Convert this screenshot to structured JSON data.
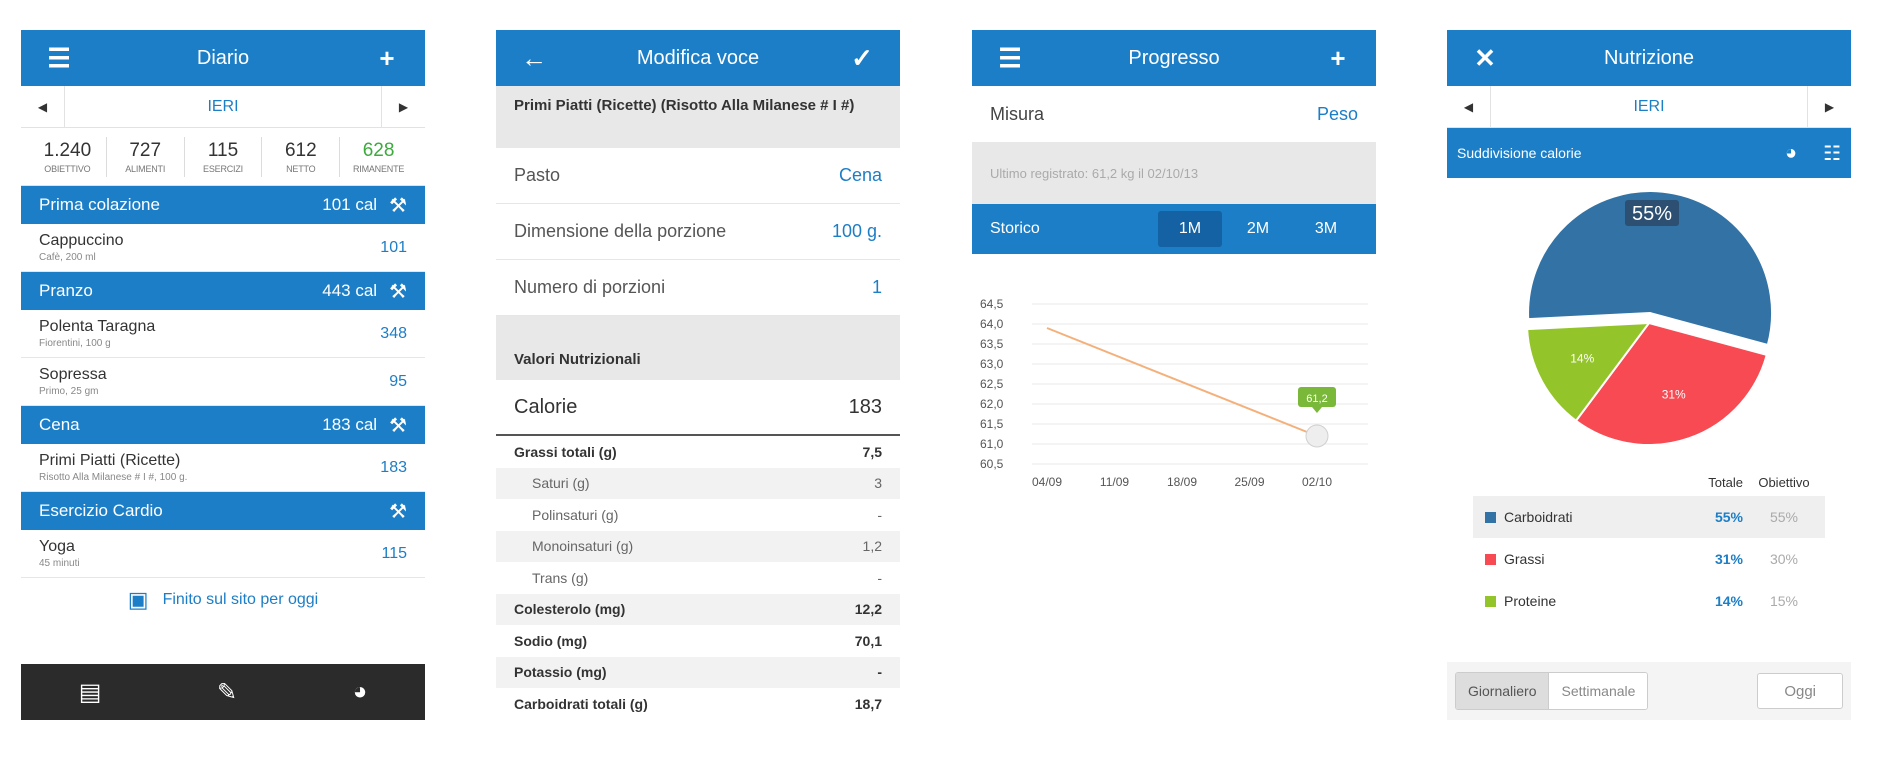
{
  "colors": {
    "primary": "#1c7ec6",
    "green": "#3caa3c",
    "carbs": "#3372a5",
    "fat": "#f74a52",
    "protein": "#93c52b",
    "line": "#f4b07a"
  },
  "diary": {
    "title": "Diario",
    "date": "IERI",
    "summary": [
      {
        "num": "1.240",
        "label": "OBIETTIVO"
      },
      {
        "num": "727",
        "label": "ALIMENTI"
      },
      {
        "num": "115",
        "label": "ESERCIZI"
      },
      {
        "num": "612",
        "label": "NETTO"
      },
      {
        "num": "628",
        "label": "RIMANENTE"
      }
    ],
    "sections": [
      {
        "name": "Prima colazione",
        "cal": "101 cal",
        "items": [
          {
            "name": "Cappuccino",
            "desc": "Cafè, 200 ml",
            "value": "101"
          }
        ]
      },
      {
        "name": "Pranzo",
        "cal": "443 cal",
        "items": [
          {
            "name": "Polenta Taragna",
            "desc": "Fiorentini, 100 g",
            "value": "348"
          },
          {
            "name": "Sopressa",
            "desc": "Primo, 25 gm",
            "value": "95"
          }
        ]
      },
      {
        "name": "Cena",
        "cal": "183 cal",
        "items": [
          {
            "name": "Primi Piatti (Ricette)",
            "desc": "Risotto Alla Milanese # I #, 100 g.",
            "value": "183"
          }
        ]
      },
      {
        "name": "Esercizio Cardio",
        "cal": "",
        "items": [
          {
            "name": "Yoga",
            "desc": "45 minuti",
            "value": "115"
          }
        ]
      }
    ],
    "finish_label": "Finito sul sito per oggi"
  },
  "edit": {
    "title": "Modifica voce",
    "food_name": "Primi Piatti (Ricette) (Risotto Alla Milanese # I #)",
    "rows": [
      {
        "label": "Pasto",
        "value": "Cena"
      },
      {
        "label": "Dimensione della porzione",
        "value": "100 g."
      },
      {
        "label": "Numero di porzioni",
        "value": "1"
      }
    ],
    "nutrition_head": "Valori Nutrizionali",
    "calories_label": "Calorie",
    "calories_value": "183",
    "nutrients": [
      {
        "label": "Grassi totali (g)",
        "value": "7,5",
        "style": "bold"
      },
      {
        "label": "Saturi (g)",
        "value": "3",
        "style": "sub alt"
      },
      {
        "label": "Polinsaturi (g)",
        "value": "-",
        "style": "sub"
      },
      {
        "label": "Monoinsaturi (g)",
        "value": "1,2",
        "style": "sub alt"
      },
      {
        "label": "Trans (g)",
        "value": "-",
        "style": "sub"
      },
      {
        "label": "Colesterolo (mg)",
        "value": "12,2",
        "style": "bold alt"
      },
      {
        "label": "Sodio (mg)",
        "value": "70,1",
        "style": "bold"
      },
      {
        "label": "Potassio (mg)",
        "value": "-",
        "style": "bold alt"
      },
      {
        "label": "Carboidrati totali (g)",
        "value": "18,7",
        "style": "bold"
      }
    ]
  },
  "progress": {
    "title": "Progresso",
    "measure_label": "Misura",
    "measure_value": "Peso",
    "last_recorded": "Ultimo registrato: 61,2 kg il 02/10/13",
    "history_label": "Storico",
    "ranges": [
      "1M",
      "2M",
      "3M"
    ],
    "active_range": "1M"
  },
  "chart_data": {
    "type": "line",
    "x": [
      "04/09",
      "11/09",
      "18/09",
      "25/09",
      "02/10"
    ],
    "y_ticks": [
      "64,5",
      "64,0",
      "63,5",
      "63,0",
      "62,5",
      "62,0",
      "61,5",
      "61,0",
      "60,5"
    ],
    "ylim": [
      60.5,
      64.5
    ],
    "series": [
      {
        "points": [
          {
            "x": "04/09",
            "y": 63.9
          },
          {
            "x": "02/10",
            "y": 61.2
          }
        ]
      }
    ],
    "annotation": {
      "x": "02/10",
      "y": 61.2,
      "label": "61,2"
    },
    "grid": true
  },
  "nutrition": {
    "title": "Nutrizione",
    "date": "IERI",
    "subtitle": "Suddivisione calorie",
    "pie_center_label": "55%",
    "pie_slices": [
      {
        "name": "Carboidrati",
        "value": 55,
        "label": "",
        "color": "#3372a5"
      },
      {
        "name": "Grassi",
        "value": 31,
        "label": "31%",
        "color": "#f74a52"
      },
      {
        "name": "Proteine",
        "value": 14,
        "label": "14%",
        "color": "#93c52b"
      }
    ],
    "col_total": "Totale",
    "col_goal": "Obiettivo",
    "rows": [
      {
        "name": "Carboidrati",
        "total": "55%",
        "goal": "55%",
        "color": "#3372a5"
      },
      {
        "name": "Grassi",
        "total": "31%",
        "goal": "30%",
        "color": "#f74a52"
      },
      {
        "name": "Proteine",
        "total": "14%",
        "goal": "15%",
        "color": "#93c52b"
      }
    ],
    "seg_daily": "Giornaliero",
    "seg_weekly": "Settimanale",
    "today_label": "Oggi"
  }
}
